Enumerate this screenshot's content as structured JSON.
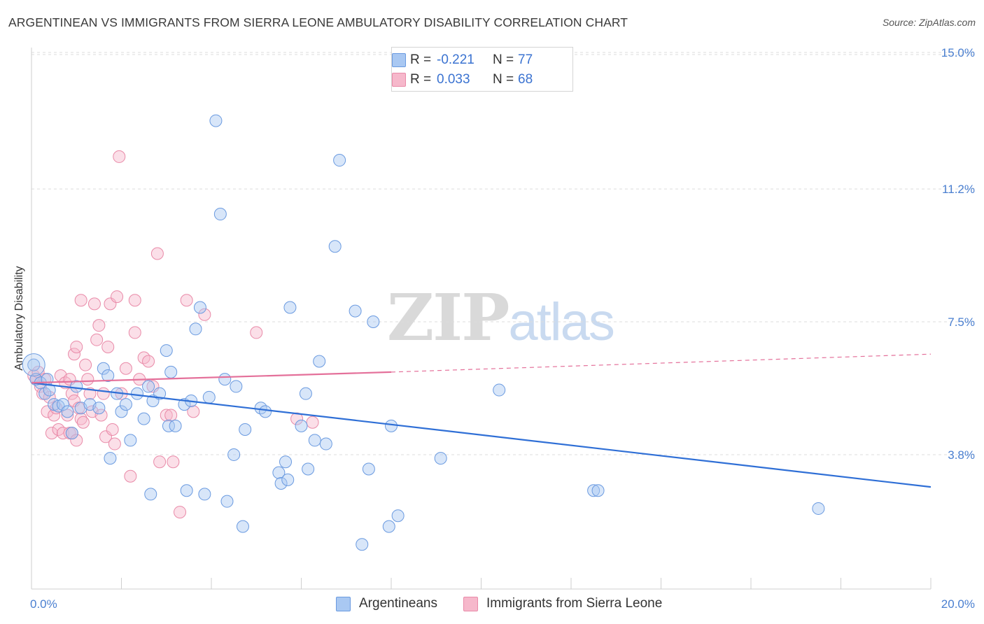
{
  "title": "ARGENTINEAN VS IMMIGRANTS FROM SIERRA LEONE AMBULATORY DISABILITY CORRELATION CHART",
  "source": "Source: ZipAtlas.com",
  "watermark": {
    "zip": "ZIP",
    "atlas": "atlas"
  },
  "legend": {
    "rows": [
      {
        "r_label": "R =",
        "r_value": "-0.221",
        "n_label": "N =",
        "n_value": "77",
        "color": "#a9c8f2"
      },
      {
        "r_label": "R =",
        "r_value": "0.033",
        "n_label": "N =",
        "n_value": "68",
        "color": "#f6b8cb"
      }
    ]
  },
  "bottom_legend": [
    {
      "label": "Argentineans",
      "color": "#a9c8f2"
    },
    {
      "label": "Immigrants from Sierra Leone",
      "color": "#f6b8cb"
    }
  ],
  "chart_data": {
    "type": "scatter",
    "title": "ARGENTINEAN VS IMMIGRANTS FROM SIERRA LEONE AMBULATORY DISABILITY CORRELATION CHART",
    "xlabel": "",
    "ylabel": "Ambulatory Disability",
    "xlim": [
      0,
      20
    ],
    "ylim": [
      0,
      15.5
    ],
    "x_tick_labels": [
      "0.0%",
      "20.0%"
    ],
    "y_ticks": [
      3.8,
      7.5,
      11.2,
      15.0
    ],
    "y_tick_labels": [
      "3.8%",
      "7.5%",
      "11.2%",
      "15.0%"
    ],
    "grid": "horizontal dashed",
    "legend_placement": "top-center",
    "colors": {
      "blue_fill": "#a9c8f2",
      "blue_stroke": "#6a9ae0",
      "blue_line": "#2f6fd6",
      "pink_fill": "#f6b8cb",
      "pink_stroke": "#e98aa8",
      "pink_line": "#e4709a"
    },
    "series": [
      {
        "name": "Argentineans",
        "color": "#a9c8f2",
        "trend": {
          "x0": 0,
          "y0": 5.8,
          "x1": 20,
          "y1": 2.9
        },
        "points": [
          [
            0.05,
            6.3
          ],
          [
            0.1,
            5.9
          ],
          [
            0.2,
            5.8
          ],
          [
            0.3,
            5.5
          ],
          [
            0.35,
            5.9
          ],
          [
            0.4,
            5.6
          ],
          [
            0.5,
            5.2
          ],
          [
            0.6,
            5.15
          ],
          [
            0.7,
            5.2
          ],
          [
            0.8,
            5.0
          ],
          [
            0.9,
            4.4
          ],
          [
            1.0,
            5.7
          ],
          [
            1.1,
            5.1
          ],
          [
            1.3,
            5.2
          ],
          [
            1.5,
            5.1
          ],
          [
            1.6,
            6.2
          ],
          [
            1.7,
            6.0
          ],
          [
            1.75,
            3.7
          ],
          [
            1.9,
            5.5
          ],
          [
            2.0,
            5.0
          ],
          [
            2.1,
            5.2
          ],
          [
            2.2,
            4.2
          ],
          [
            2.35,
            5.5
          ],
          [
            2.5,
            4.8
          ],
          [
            2.6,
            5.7
          ],
          [
            2.65,
            2.7
          ],
          [
            2.7,
            5.3
          ],
          [
            2.85,
            5.5
          ],
          [
            3.0,
            6.7
          ],
          [
            3.05,
            4.6
          ],
          [
            3.1,
            6.1
          ],
          [
            3.2,
            4.6
          ],
          [
            3.4,
            5.2
          ],
          [
            3.45,
            2.8
          ],
          [
            3.55,
            5.3
          ],
          [
            3.65,
            7.3
          ],
          [
            3.75,
            7.9
          ],
          [
            3.85,
            2.7
          ],
          [
            3.95,
            5.4
          ],
          [
            4.1,
            13.1
          ],
          [
            4.2,
            10.5
          ],
          [
            4.3,
            5.9
          ],
          [
            4.35,
            2.5
          ],
          [
            4.5,
            3.8
          ],
          [
            4.55,
            5.7
          ],
          [
            4.7,
            1.8
          ],
          [
            4.75,
            4.5
          ],
          [
            5.1,
            5.1
          ],
          [
            5.2,
            5.0
          ],
          [
            5.5,
            3.3
          ],
          [
            5.55,
            3.0
          ],
          [
            5.65,
            3.6
          ],
          [
            5.7,
            3.1
          ],
          [
            5.75,
            7.9
          ],
          [
            6.0,
            4.6
          ],
          [
            6.1,
            5.5
          ],
          [
            6.15,
            3.4
          ],
          [
            6.3,
            4.2
          ],
          [
            6.4,
            6.4
          ],
          [
            6.55,
            4.1
          ],
          [
            6.75,
            9.6
          ],
          [
            6.85,
            12.0
          ],
          [
            7.2,
            7.8
          ],
          [
            7.35,
            1.3
          ],
          [
            7.5,
            3.4
          ],
          [
            7.6,
            7.5
          ],
          [
            7.95,
            1.8
          ],
          [
            8.0,
            4.6
          ],
          [
            8.15,
            2.1
          ],
          [
            9.1,
            3.7
          ],
          [
            10.4,
            5.6
          ],
          [
            12.5,
            2.8
          ],
          [
            12.6,
            2.8
          ],
          [
            17.5,
            2.3
          ]
        ]
      },
      {
        "name": "Immigrants from Sierra Leone",
        "color": "#f6b8cb",
        "trend": {
          "x0": 0,
          "y0": 5.8,
          "x1": 8,
          "y1": 6.1
        },
        "trend_dashed": {
          "x0": 8,
          "y0": 6.1,
          "x1": 20,
          "y1": 6.6
        },
        "points": [
          [
            0.05,
            6.0
          ],
          [
            0.1,
            5.9
          ],
          [
            0.15,
            6.1
          ],
          [
            0.2,
            5.7
          ],
          [
            0.25,
            5.5
          ],
          [
            0.3,
            5.9
          ],
          [
            0.35,
            5.0
          ],
          [
            0.4,
            5.4
          ],
          [
            0.45,
            4.4
          ],
          [
            0.5,
            4.9
          ],
          [
            0.55,
            5.1
          ],
          [
            0.6,
            4.5
          ],
          [
            0.65,
            6.0
          ],
          [
            0.7,
            4.4
          ],
          [
            0.75,
            5.8
          ],
          [
            0.8,
            4.9
          ],
          [
            0.85,
            4.4
          ],
          [
            0.85,
            5.9
          ],
          [
            0.9,
            5.5
          ],
          [
            0.9,
            4.4
          ],
          [
            0.95,
            5.3
          ],
          [
            0.95,
            6.6
          ],
          [
            1.0,
            6.8
          ],
          [
            1.0,
            4.2
          ],
          [
            1.05,
            5.1
          ],
          [
            1.1,
            8.1
          ],
          [
            1.1,
            4.8
          ],
          [
            1.15,
            4.7
          ],
          [
            1.2,
            6.3
          ],
          [
            1.25,
            5.9
          ],
          [
            1.3,
            5.5
          ],
          [
            1.35,
            5.0
          ],
          [
            1.4,
            8.0
          ],
          [
            1.45,
            7.0
          ],
          [
            1.5,
            7.4
          ],
          [
            1.55,
            4.9
          ],
          [
            1.6,
            5.5
          ],
          [
            1.65,
            4.3
          ],
          [
            1.7,
            6.8
          ],
          [
            1.75,
            8.0
          ],
          [
            1.8,
            4.5
          ],
          [
            1.85,
            4.1
          ],
          [
            1.9,
            8.2
          ],
          [
            1.95,
            12.1
          ],
          [
            2.0,
            5.5
          ],
          [
            2.1,
            6.2
          ],
          [
            2.2,
            3.2
          ],
          [
            2.3,
            8.1
          ],
          [
            2.3,
            7.2
          ],
          [
            2.4,
            5.9
          ],
          [
            2.5,
            6.5
          ],
          [
            2.6,
            6.4
          ],
          [
            2.7,
            5.7
          ],
          [
            2.8,
            9.4
          ],
          [
            2.85,
            3.6
          ],
          [
            3.0,
            4.9
          ],
          [
            3.1,
            4.9
          ],
          [
            3.15,
            3.6
          ],
          [
            3.3,
            2.2
          ],
          [
            3.45,
            8.1
          ],
          [
            3.6,
            5.0
          ],
          [
            3.85,
            7.7
          ],
          [
            5.0,
            7.2
          ],
          [
            5.9,
            4.8
          ],
          [
            6.25,
            4.7
          ]
        ]
      }
    ]
  }
}
